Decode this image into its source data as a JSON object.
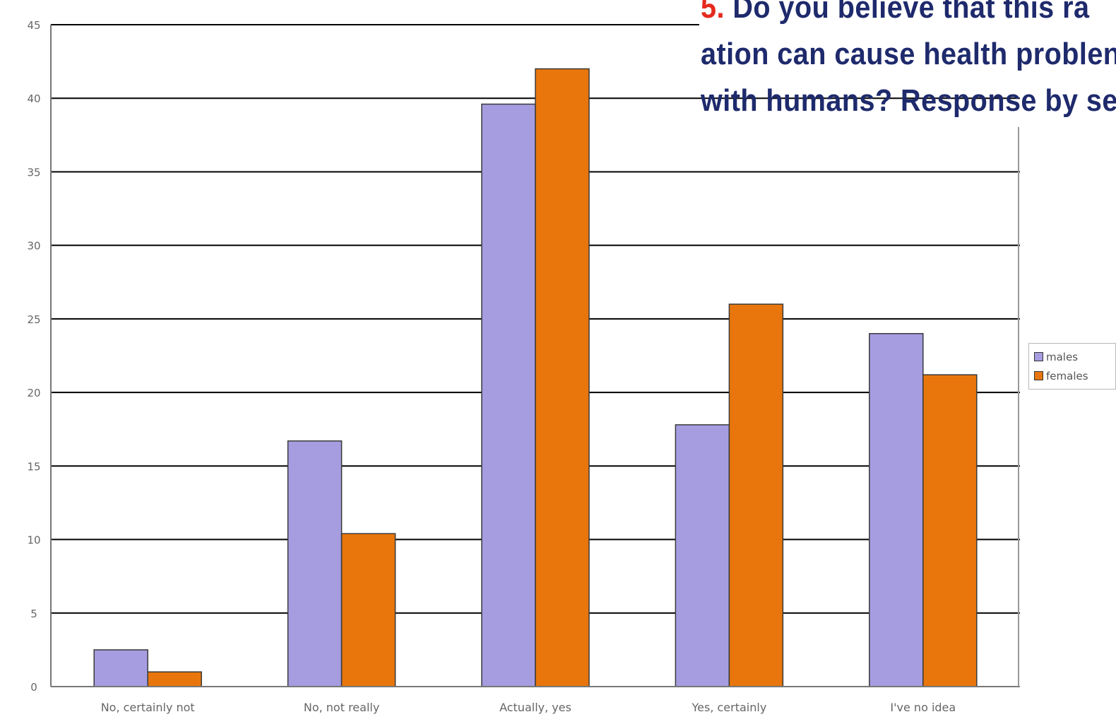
{
  "chart_data": {
    "type": "bar",
    "title": {
      "number": "5.",
      "lines": [
        " Do you believe that this ra",
        "ation can cause health problen",
        "with humans? Response by se"
      ]
    },
    "categories": [
      "No, certainly not",
      "No, not really",
      "Actually, yes",
      "Yes, certainly",
      "I've no idea"
    ],
    "series": [
      {
        "name": "males",
        "color": "#a59de0",
        "values": [
          2.5,
          16.7,
          39.6,
          17.8,
          24
        ]
      },
      {
        "name": "females",
        "color": "#e8760c",
        "values": [
          1,
          10.4,
          42,
          26,
          21.2
        ]
      }
    ],
    "y_ticks": [
      "0",
      "5",
      "10",
      "15",
      "20",
      "25",
      "30",
      "35",
      "40",
      "45"
    ],
    "ylim": [
      0,
      45
    ],
    "xlabel": "",
    "ylabel": "",
    "grid": true,
    "legend_position": "right"
  }
}
